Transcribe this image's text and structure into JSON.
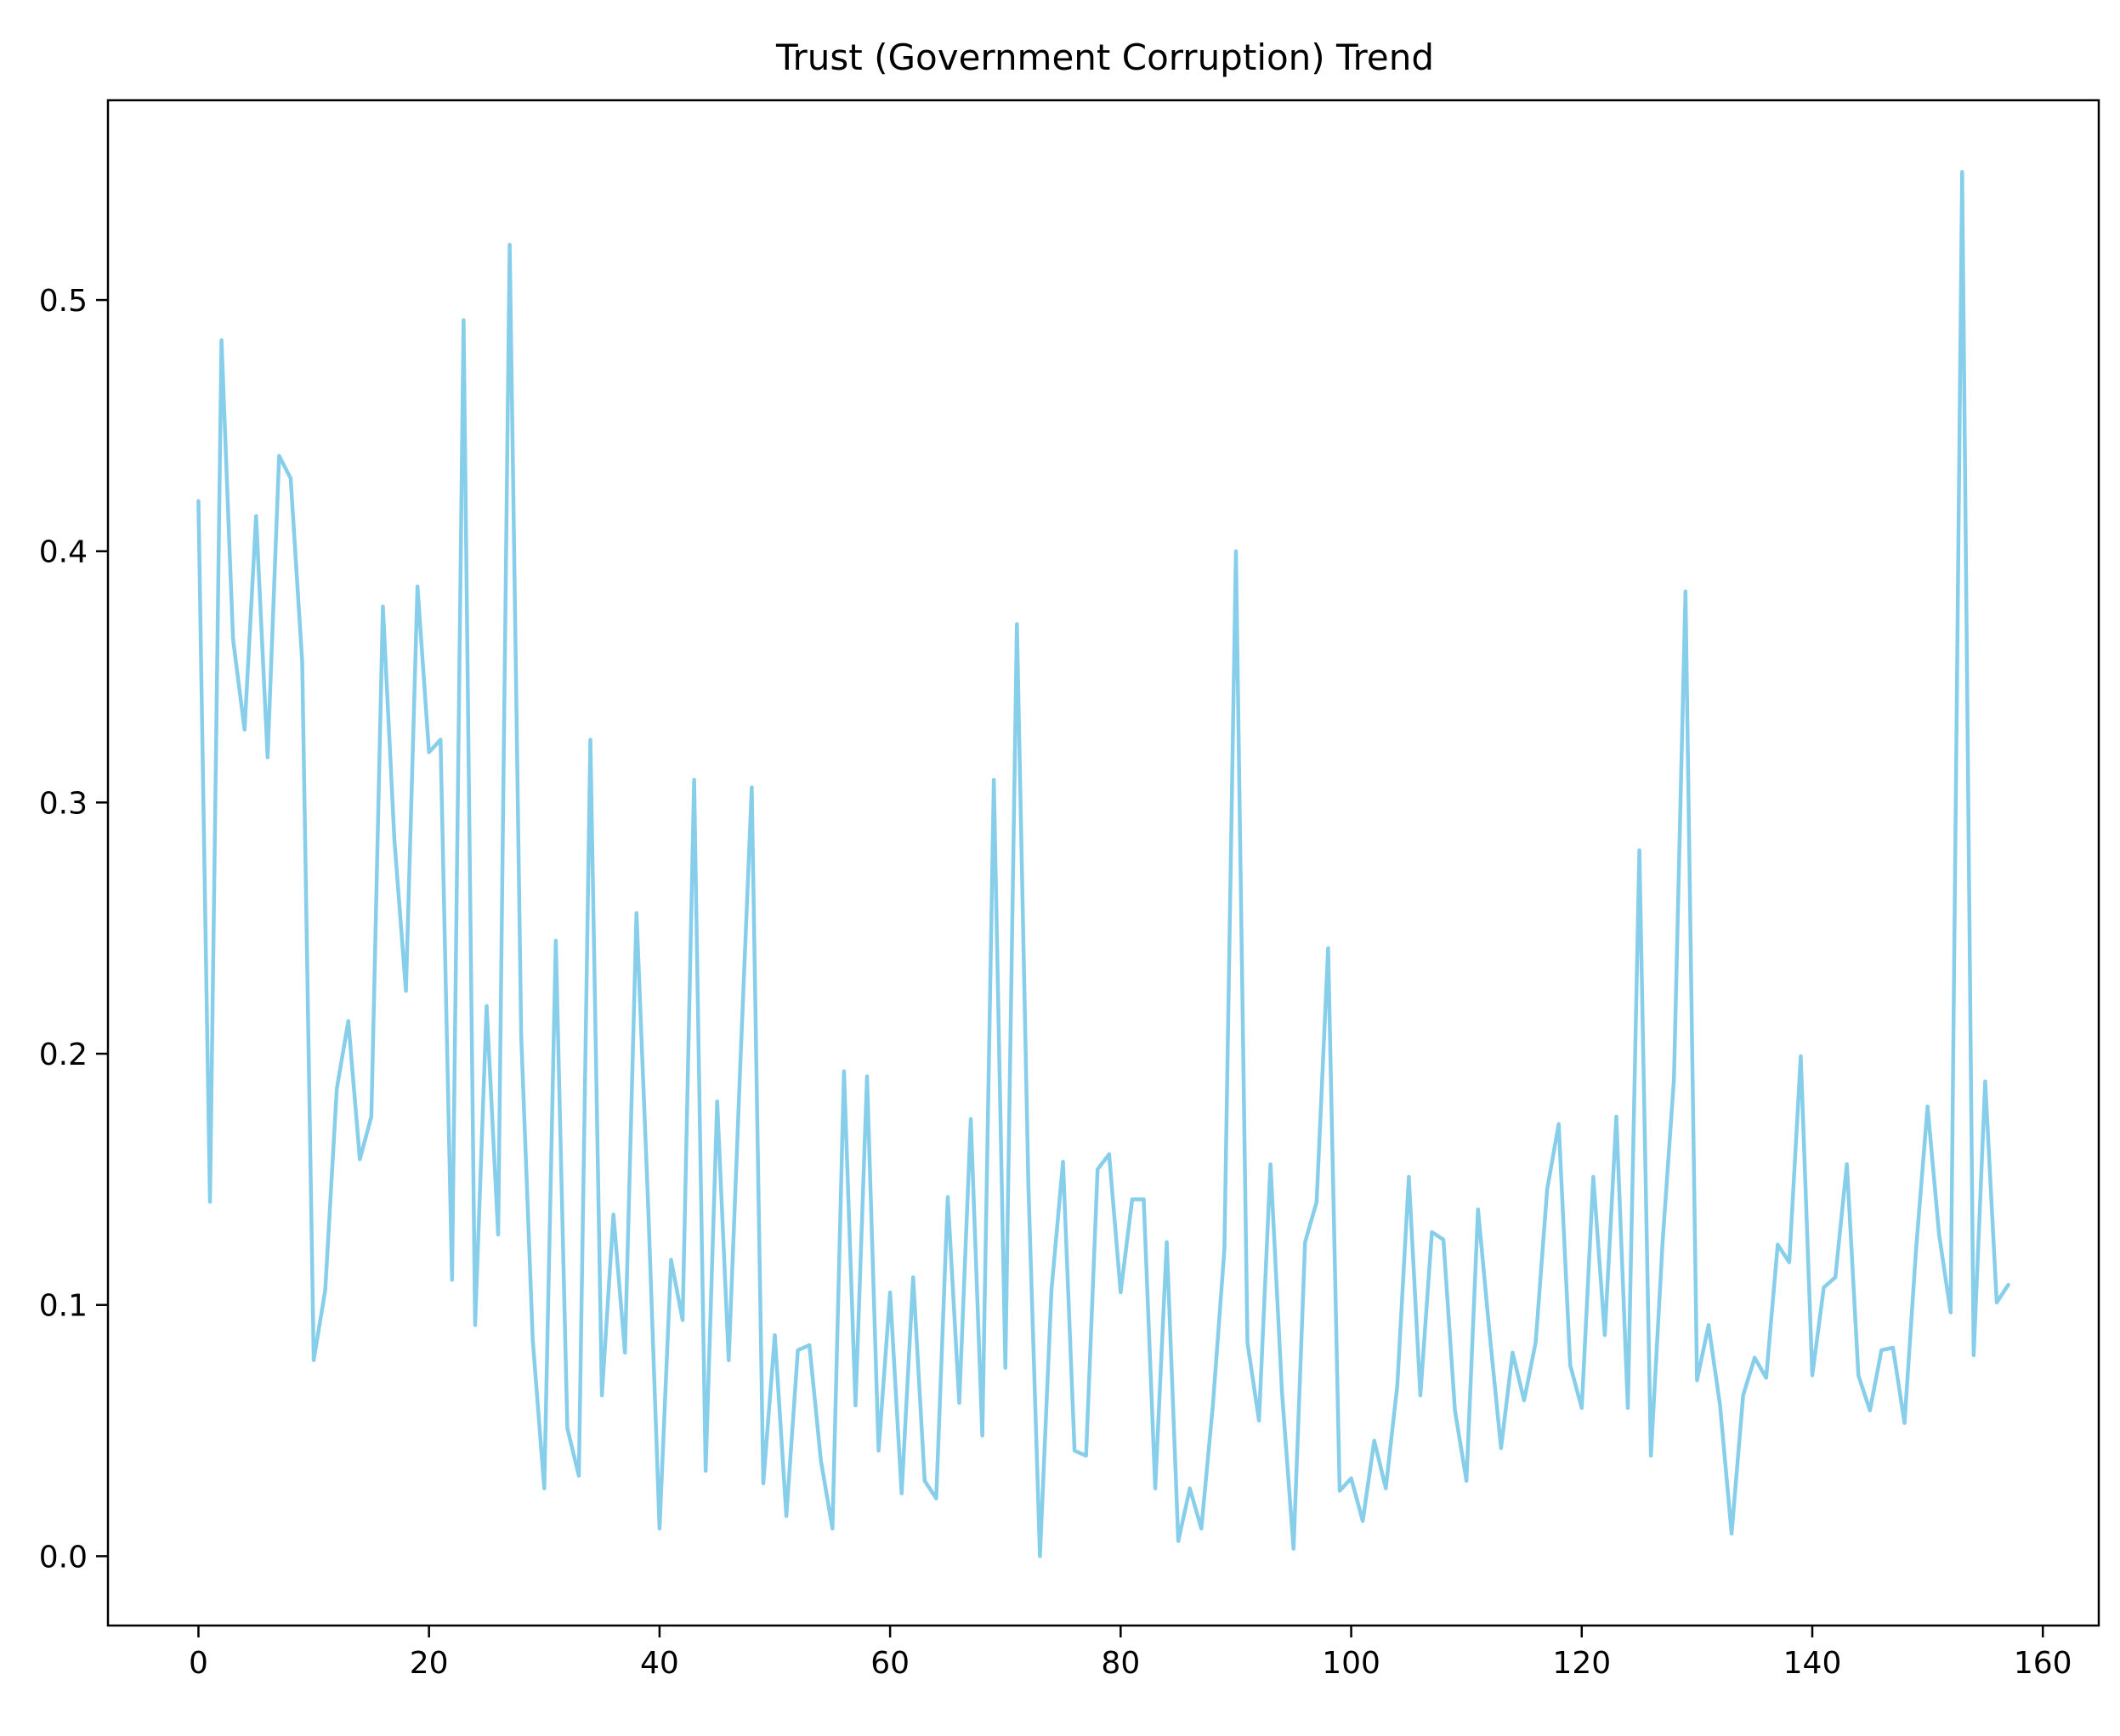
{
  "chart_data": {
    "type": "line",
    "title": "Trust (Government Corruption) Trend",
    "xlabel": "",
    "ylabel": "",
    "xlim": [
      -7.85,
      164.85
    ],
    "ylim": [
      -0.0276,
      0.5795
    ],
    "x_ticks": [
      0,
      20,
      40,
      60,
      80,
      100,
      120,
      140,
      160
    ],
    "x_tick_labels": [
      "0",
      "20",
      "40",
      "60",
      "80",
      "100",
      "120",
      "140",
      "160"
    ],
    "y_ticks": [
      0.0,
      0.1,
      0.2,
      0.3,
      0.4,
      0.5
    ],
    "y_tick_labels": [
      "0.0",
      "0.1",
      "0.2",
      "0.3",
      "0.4",
      "0.5"
    ],
    "grid": false,
    "legend": "none",
    "series": [
      {
        "color": "#87ceeb",
        "x_start": 0,
        "x_step": 1,
        "values": [
          0.42,
          0.141,
          0.484,
          0.365,
          0.329,
          0.414,
          0.318,
          0.438,
          0.429,
          0.356,
          0.078,
          0.106,
          0.186,
          0.213,
          0.158,
          0.175,
          0.378,
          0.285,
          0.225,
          0.386,
          0.32,
          0.325,
          0.11,
          0.492,
          0.092,
          0.219,
          0.128,
          0.522,
          0.207,
          0.086,
          0.027,
          0.245,
          0.051,
          0.032,
          0.325,
          0.064,
          0.136,
          0.081,
          0.256,
          0.141,
          0.011,
          0.118,
          0.094,
          0.309,
          0.034,
          0.181,
          0.078,
          0.195,
          0.306,
          0.029,
          0.088,
          0.016,
          0.082,
          0.084,
          0.038,
          0.011,
          0.193,
          0.06,
          0.191,
          0.042,
          0.105,
          0.025,
          0.111,
          0.03,
          0.023,
          0.143,
          0.061,
          0.174,
          0.048,
          0.309,
          0.075,
          0.371,
          0.147,
          0.0,
          0.106,
          0.157,
          0.042,
          0.04,
          0.154,
          0.16,
          0.105,
          0.142,
          0.142,
          0.027,
          0.125,
          0.006,
          0.027,
          0.011,
          0.06,
          0.122,
          0.4,
          0.085,
          0.054,
          0.156,
          0.065,
          0.003,
          0.125,
          0.141,
          0.242,
          0.026,
          0.031,
          0.014,
          0.046,
          0.027,
          0.068,
          0.151,
          0.064,
          0.129,
          0.126,
          0.058,
          0.03,
          0.138,
          0.089,
          0.043,
          0.081,
          0.062,
          0.085,
          0.146,
          0.172,
          0.076,
          0.059,
          0.151,
          0.088,
          0.175,
          0.059,
          0.281,
          0.04,
          0.124,
          0.19,
          0.384,
          0.07,
          0.092,
          0.06,
          0.009,
          0.064,
          0.079,
          0.071,
          0.124,
          0.117,
          0.199,
          0.072,
          0.107,
          0.111,
          0.156,
          0.072,
          0.058,
          0.082,
          0.083,
          0.053,
          0.122,
          0.179,
          0.128,
          0.097,
          0.551,
          0.08,
          0.189,
          0.101,
          0.108
        ]
      }
    ]
  }
}
